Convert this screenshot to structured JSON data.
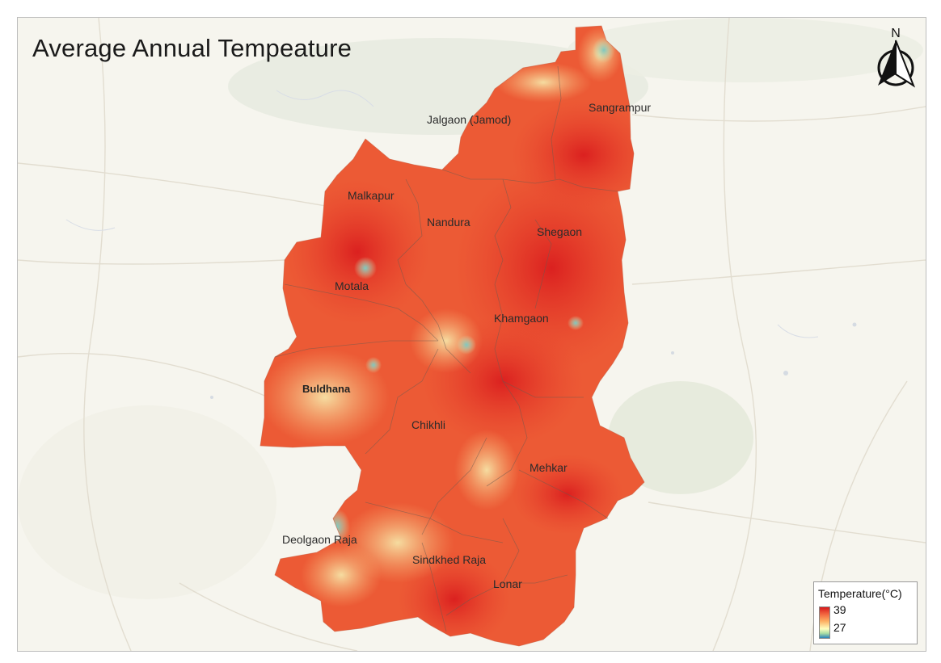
{
  "map": {
    "title": "Average Annual Tempeature",
    "north_label": "N",
    "places": [
      {
        "id": "jalgaon",
        "label": "Jalgaon (Jamod)"
      },
      {
        "id": "sangrampur",
        "label": "Sangrampur"
      },
      {
        "id": "malkapur",
        "label": "Malkapur"
      },
      {
        "id": "nandura",
        "label": "Nandura"
      },
      {
        "id": "shegaon",
        "label": "Shegaon"
      },
      {
        "id": "motala",
        "label": "Motala"
      },
      {
        "id": "khamgaon",
        "label": "Khamgaon"
      },
      {
        "id": "buldhana",
        "label": "Buldhana"
      },
      {
        "id": "chikhli",
        "label": "Chikhli"
      },
      {
        "id": "mehkar",
        "label": "Mehkar"
      },
      {
        "id": "deolgaon",
        "label": "Deolgaon Raja"
      },
      {
        "id": "sindkhed",
        "label": "Sindkhed Raja"
      },
      {
        "id": "lonar",
        "label": "Lonar"
      }
    ],
    "legend": {
      "title": "Temperature(°C)",
      "max": "39",
      "min": "27",
      "colors": [
        "#d7191c",
        "#f46d43",
        "#fdae61",
        "#ffffbf",
        "#abdda4",
        "#2b83ba"
      ]
    }
  }
}
